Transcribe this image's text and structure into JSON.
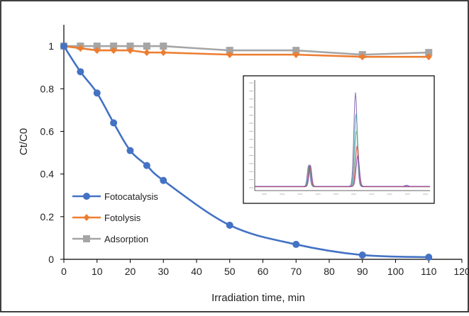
{
  "chart_data": {
    "type": "line",
    "title": "",
    "xlabel": "Irradiation time, min",
    "ylabel": "Ct/C0",
    "xlim": [
      0,
      120
    ],
    "ylim": [
      0,
      1.1
    ],
    "xticks": [
      0,
      10,
      20,
      30,
      40,
      50,
      60,
      70,
      80,
      90,
      100,
      110,
      120
    ],
    "yticks": [
      0,
      0.2,
      0.4,
      0.6,
      0.8,
      1
    ],
    "xtick_labels": [
      "0",
      "10",
      "20",
      "30",
      "40",
      "50",
      "60",
      "70",
      "80",
      "90",
      "100",
      "110",
      "120"
    ],
    "ytick_labels": [
      "0",
      "0.2",
      "0.4",
      "0.6",
      "0.8",
      "1"
    ],
    "grid": false,
    "legend_position": "bottom-left",
    "series": [
      {
        "name": "Fotocatalysis",
        "color": "#4472C4",
        "marker": "circle",
        "smooth": true,
        "x": [
          0,
          5,
          10,
          15,
          20,
          25,
          30,
          50,
          70,
          90,
          110
        ],
        "y": [
          1.0,
          0.88,
          0.78,
          0.64,
          0.51,
          0.44,
          0.37,
          0.16,
          0.07,
          0.02,
          0.01
        ]
      },
      {
        "name": "Fotolysis",
        "color": "#ED7D31",
        "marker": "diamond",
        "smooth": false,
        "x": [
          0,
          5,
          10,
          15,
          20,
          25,
          30,
          50,
          70,
          90,
          110
        ],
        "y": [
          1.0,
          0.99,
          0.98,
          0.98,
          0.98,
          0.97,
          0.97,
          0.96,
          0.96,
          0.95,
          0.95
        ]
      },
      {
        "name": "Adsorption",
        "color": "#A5A5A5",
        "marker": "square",
        "smooth": false,
        "x": [
          0,
          5,
          10,
          15,
          20,
          25,
          30,
          50,
          70,
          90,
          110
        ],
        "y": [
          1.0,
          1.0,
          1.0,
          1.0,
          1.0,
          1.0,
          1.0,
          0.98,
          0.98,
          0.96,
          0.97
        ]
      }
    ],
    "inset": {
      "description_type": "chromatogram",
      "traces": [
        {
          "color": "#7f5fa8",
          "peak2": 0.92
        },
        {
          "color": "#4f9fb0",
          "peak2": 0.72
        },
        {
          "color": "#58b08a",
          "peak2": 0.55
        },
        {
          "color": "#e04040",
          "peak2": 0.4
        },
        {
          "color": "#8050c0",
          "peak2": 0.3
        }
      ]
    }
  }
}
